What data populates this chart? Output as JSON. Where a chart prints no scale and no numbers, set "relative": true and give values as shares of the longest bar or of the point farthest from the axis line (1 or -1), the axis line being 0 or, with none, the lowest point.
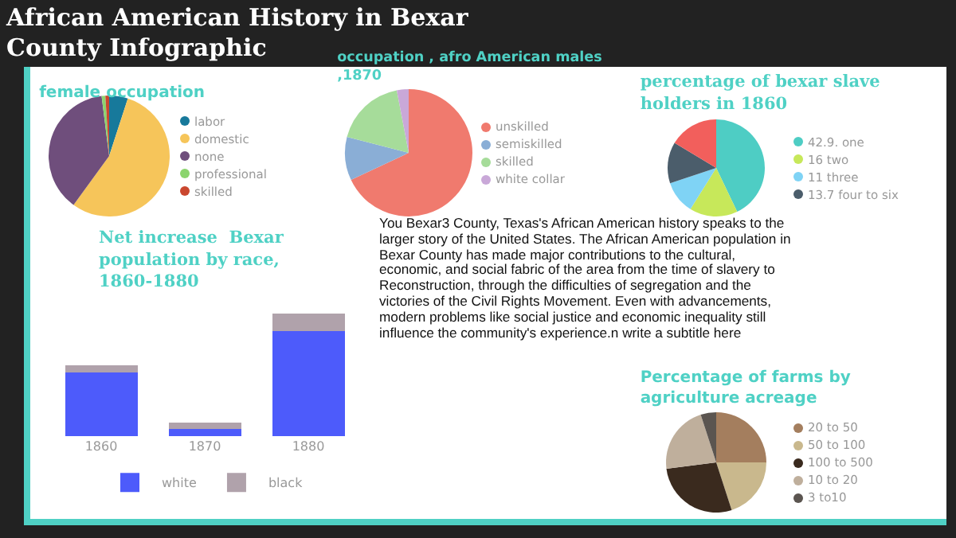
{
  "chart_data": [
    {
      "type": "other",
      "title": "African American History in Bexar County Infographic"
    },
    {
      "type": "pie",
      "title": "female occupation",
      "legend": "right",
      "categories": [
        "labor",
        "domestic",
        "none",
        "professional",
        "skilled"
      ],
      "values": [
        5,
        55,
        38,
        1,
        1
      ],
      "colors": [
        "#17799b",
        "#f6c55a",
        "#6f4e7c",
        "#8bd46e",
        "#ca472f"
      ]
    },
    {
      "type": "pie",
      "title": "occupation , afro American males ,1870",
      "legend": "right",
      "categories": [
        "unskilled",
        "semiskilled",
        "skilled",
        "white collar"
      ],
      "values": [
        68,
        11,
        18,
        3
      ],
      "colors": [
        "#f07a6e",
        "#8aaed6",
        "#a6dc9a",
        "#c9a8d8"
      ]
    },
    {
      "type": "pie",
      "title": "percentage of bexar slave holders in 1860",
      "legend": "right",
      "categories": [
        "42.9. one",
        "16 two",
        "11 three",
        "13.7 four to six",
        null
      ],
      "values": [
        42.9,
        16,
        11,
        13.7,
        16.4
      ],
      "colors": [
        "#4ecdc4",
        "#c7e85a",
        "#7fd3f5",
        "#4b5d6b",
        "#f25f5c"
      ]
    },
    {
      "type": "bar",
      "title": "Net increase  Bexar population by race, 1860-1880",
      "relative": true,
      "stacked": true,
      "legend": "bottom",
      "categories": [
        "1860",
        "1870",
        "1880"
      ],
      "series": [
        {
          "name": "white",
          "color": "#4d5bfb",
          "values": [
            0.52,
            0.06,
            0.86
          ]
        },
        {
          "name": "black",
          "color": "#b0a2ab",
          "values": [
            0.06,
            0.05,
            0.14
          ]
        }
      ]
    },
    {
      "type": "other",
      "annotations": [
        "You Bexar3 County, Texas's African American history speaks to the larger story of the United States. The African American population in Bexar County has made major contributions to the cultural, economic, and social fabric of the area from the time of slavery to Reconstruction, through the difficulties of segregation and the victories of the Civil Rights Movement. Even with advancements, modern problems like social justice and economic inequality still influence the community's experience.n write a subtitle here"
      ]
    },
    {
      "type": "pie",
      "title": "Percentage of farms by agriculture acreage",
      "legend": "right",
      "categories": [
        "20 to 50",
        "50 to 100",
        "100 to 500",
        "10 to 20",
        "3 to10"
      ],
      "values": [
        25,
        20,
        28,
        22,
        5
      ],
      "colors": [
        "#a47e5e",
        "#c9b88d",
        "#3a2a1e",
        "#bfaf9c",
        "#5b5550"
      ]
    }
  ]
}
